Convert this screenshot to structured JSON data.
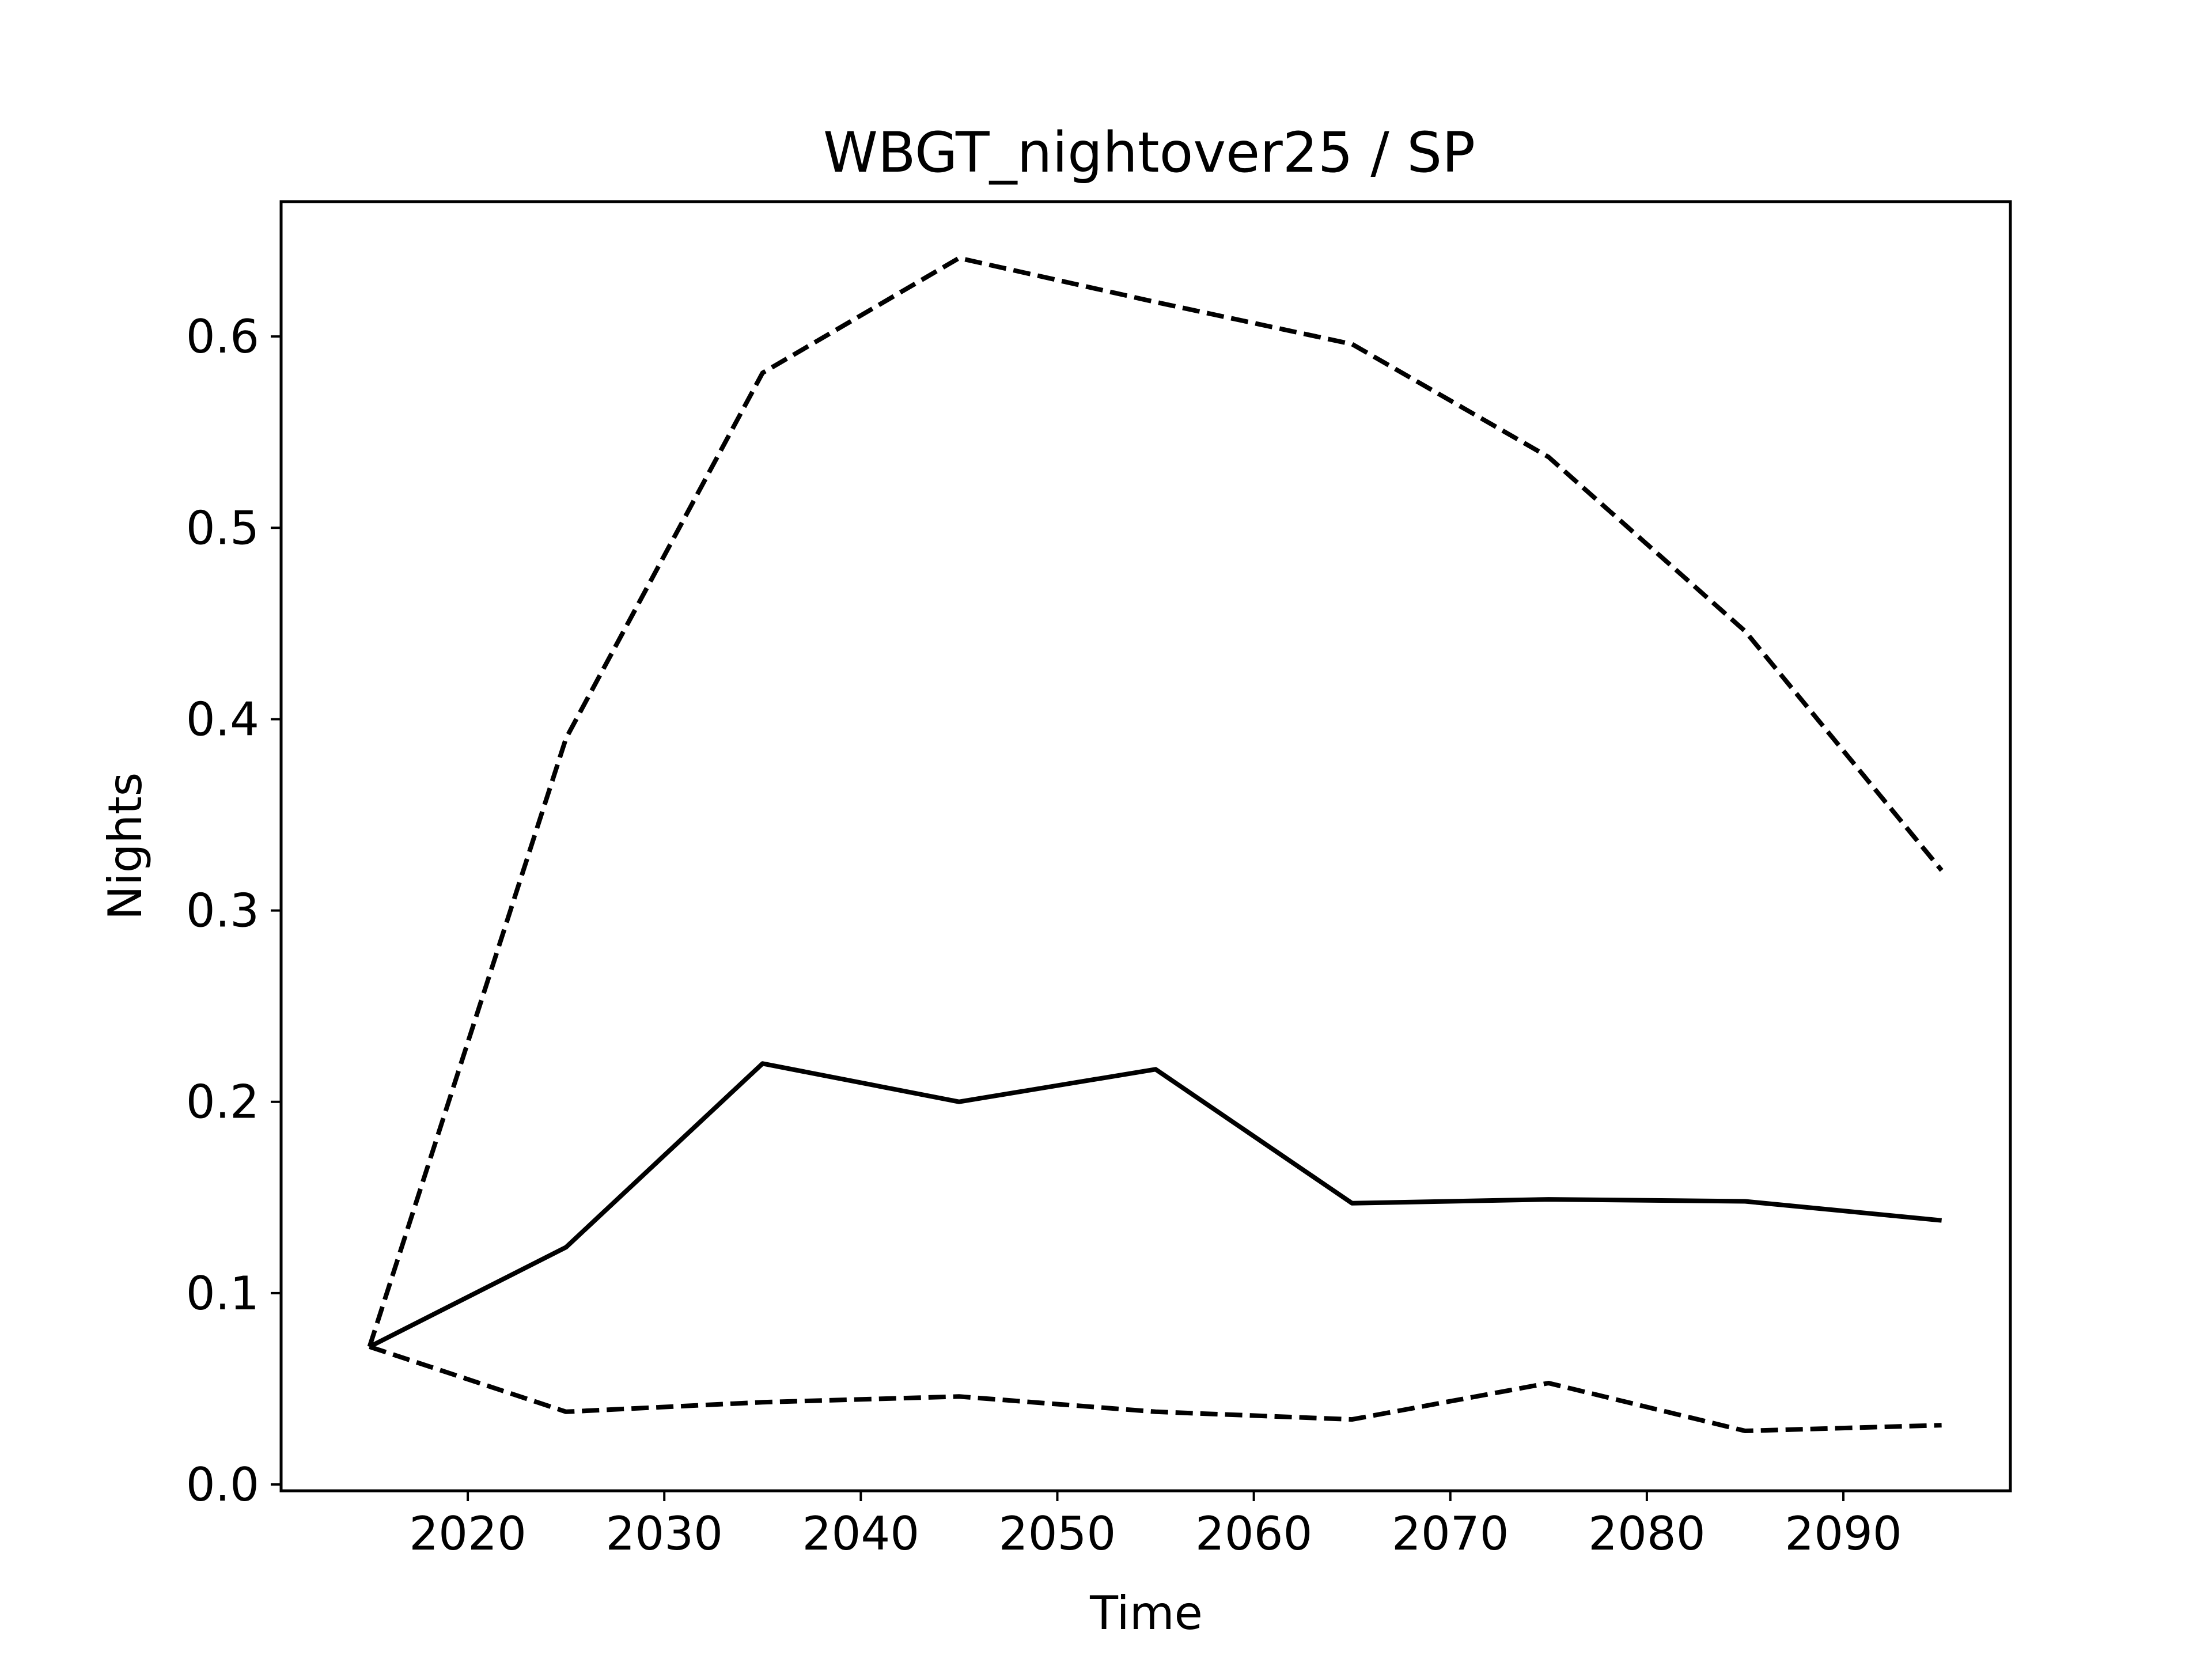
{
  "chart_data": {
    "type": "line",
    "title": "WBGT_nightover25 / SP",
    "xlabel": "Time",
    "ylabel": "Nights",
    "xlim": [
      2010.5,
      2098.5
    ],
    "ylim": [
      -0.0033,
      0.6705
    ],
    "x_ticks": [
      2020,
      2030,
      2040,
      2050,
      2060,
      2070,
      2080,
      2090
    ],
    "y_ticks": [
      0.0,
      0.1,
      0.2,
      0.3,
      0.4,
      0.5,
      0.6
    ],
    "x_tick_labels": [
      "2020",
      "2030",
      "2040",
      "2050",
      "2060",
      "2070",
      "2080",
      "2090"
    ],
    "y_tick_labels": [
      "0.0",
      "0.1",
      "0.2",
      "0.3",
      "0.4",
      "0.5",
      "0.6"
    ],
    "grid": false,
    "x": [
      2015,
      2025,
      2035,
      2045,
      2055,
      2065,
      2075,
      2085,
      2095
    ],
    "series": [
      {
        "style": "solid",
        "color": "#000000",
        "values": [
          0.072,
          0.124,
          0.22,
          0.2,
          0.217,
          0.147,
          0.149,
          0.148,
          0.138
        ]
      },
      {
        "style": "dashed",
        "color": "#000000",
        "values": [
          0.072,
          0.39,
          0.581,
          0.641,
          0.618,
          0.596,
          0.537,
          0.446,
          0.321
        ]
      },
      {
        "style": "dashed",
        "color": "#000000",
        "values": [
          0.072,
          0.038,
          0.043,
          0.046,
          0.038,
          0.034,
          0.053,
          0.028,
          0.031
        ]
      }
    ]
  }
}
